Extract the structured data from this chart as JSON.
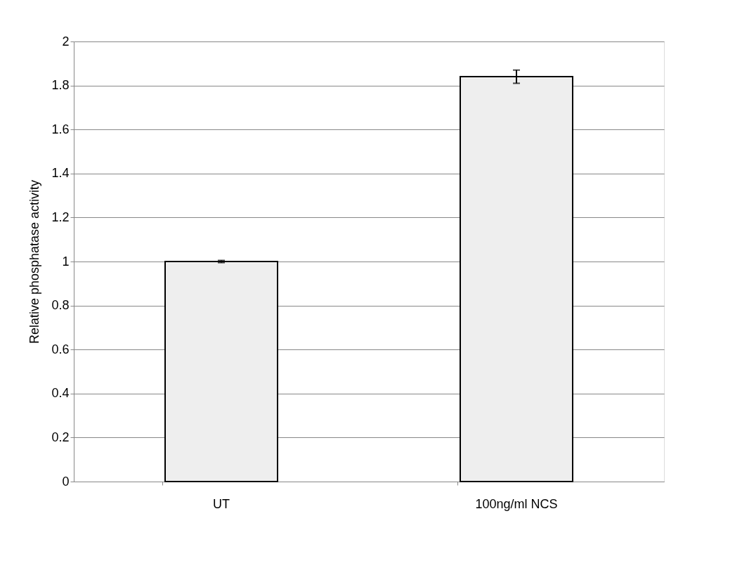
{
  "chart_data": {
    "type": "bar",
    "ylabel": "Relative phosphatase activity",
    "categories": [
      "UT",
      "100ng/ml NCS"
    ],
    "values": [
      1.0,
      1.84
    ],
    "errors": [
      0.005,
      0.03
    ],
    "color": "#eeeeee",
    "ylim": [
      0,
      2
    ],
    "yticks": [
      0,
      0.2,
      0.4,
      0.6,
      0.8,
      1,
      1.2,
      1.4,
      1.6,
      1.8,
      2
    ],
    "grid": "y"
  }
}
